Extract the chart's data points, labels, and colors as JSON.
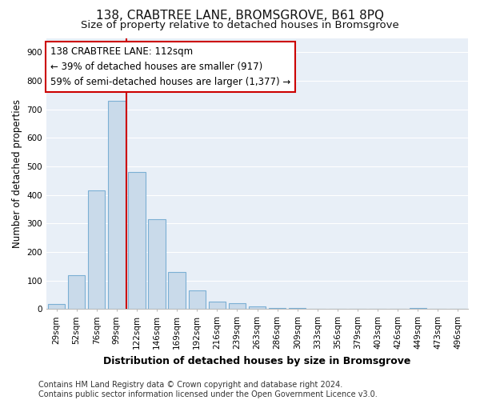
{
  "title": "138, CRABTREE LANE, BROMSGROVE, B61 8PQ",
  "subtitle": "Size of property relative to detached houses in Bromsgrove",
  "xlabel": "Distribution of detached houses by size in Bromsgrove",
  "ylabel": "Number of detached properties",
  "categories": [
    "29sqm",
    "52sqm",
    "76sqm",
    "99sqm",
    "122sqm",
    "146sqm",
    "169sqm",
    "192sqm",
    "216sqm",
    "239sqm",
    "263sqm",
    "286sqm",
    "309sqm",
    "333sqm",
    "356sqm",
    "379sqm",
    "403sqm",
    "426sqm",
    "449sqm",
    "473sqm",
    "496sqm"
  ],
  "values": [
    18,
    120,
    415,
    730,
    480,
    315,
    130,
    65,
    25,
    20,
    10,
    5,
    5,
    2,
    1,
    1,
    1,
    1,
    5,
    1,
    1
  ],
  "bar_color": "#c9daea",
  "bar_edge_color": "#7bafd4",
  "vline_x": 3.5,
  "vline_color": "#cc0000",
  "annotation_text": "138 CRABTREE LANE: 112sqm\n← 39% of detached houses are smaller (917)\n59% of semi-detached houses are larger (1,377) →",
  "annotation_box_color": "#ffffff",
  "annotation_box_edge": "#cc0000",
  "ylim": [
    0,
    950
  ],
  "yticks": [
    0,
    100,
    200,
    300,
    400,
    500,
    600,
    700,
    800,
    900
  ],
  "footer": "Contains HM Land Registry data © Crown copyright and database right 2024.\nContains public sector information licensed under the Open Government Licence v3.0.",
  "bg_color": "#ffffff",
  "plot_bg_color": "#e8eff7",
  "grid_color": "#ffffff",
  "title_fontsize": 11,
  "subtitle_fontsize": 9.5,
  "ylabel_fontsize": 8.5,
  "xlabel_fontsize": 9,
  "tick_fontsize": 7.5,
  "annotation_fontsize": 8.5,
  "footer_fontsize": 7
}
